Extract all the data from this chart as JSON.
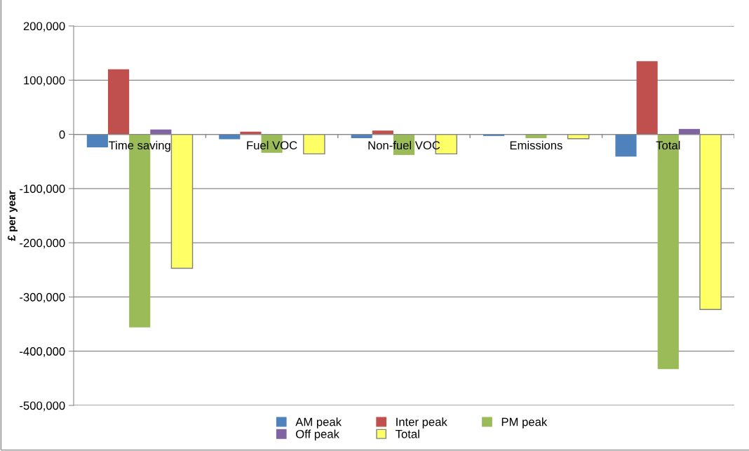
{
  "chart_data": {
    "type": "bar",
    "ylabel": "£ per year",
    "categories": [
      "Time saving",
      "Fuel VOC",
      "Non-fuel VOC",
      "Emissions",
      "Total"
    ],
    "series": [
      {
        "name": "AM peak",
        "color": "#4f81bd",
        "values": [
          -24000,
          -9000,
          -7000,
          -3000,
          -41000
        ]
      },
      {
        "name": "Inter peak",
        "color": "#c0504d",
        "values": [
          120000,
          5000,
          7000,
          null,
          135000
        ]
      },
      {
        "name": "PM peak",
        "color": "#9bbb59",
        "values": [
          -356000,
          -34000,
          -38000,
          -7000,
          -433000
        ]
      },
      {
        "name": "Off peak",
        "color": "#8064a2",
        "values": [
          9000,
          0,
          0,
          0,
          10000
        ]
      },
      {
        "name": "Total",
        "color": "#ffff66",
        "values": [
          -247000,
          -36000,
          -36000,
          -8000,
          -323000
        ]
      }
    ],
    "ylim": [
      -500000,
      200000
    ],
    "yticks": [
      {
        "value": -500000,
        "label": "-500,000"
      },
      {
        "value": -400000,
        "label": "-400,000"
      },
      {
        "value": -300000,
        "label": "-300,000"
      },
      {
        "value": -200000,
        "label": "-200,000"
      },
      {
        "value": -100000,
        "label": "-100,000"
      },
      {
        "value": 0,
        "label": "0"
      },
      {
        "value": 100000,
        "label": "100,000"
      },
      {
        "value": 200000,
        "label": "200,000"
      }
    ],
    "grid": "y",
    "legend": "bottom"
  }
}
